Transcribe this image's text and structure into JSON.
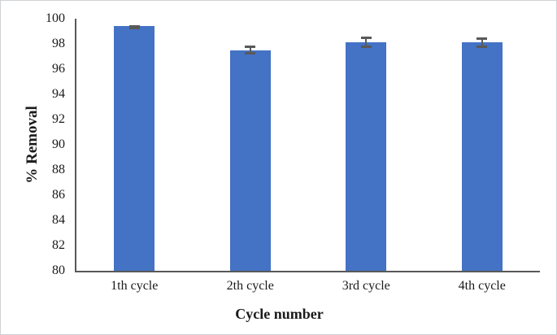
{
  "figure": {
    "background": "#ffffff",
    "border_color": "#cfd2d6"
  },
  "chart_data": {
    "type": "bar",
    "title": "",
    "categories": [
      "1th cycle",
      "2th cycle",
      "3rd cycle",
      "4th cycle"
    ],
    "values": [
      99.4,
      97.5,
      98.1,
      98.1
    ],
    "errors": [
      0.1,
      0.35,
      0.45,
      0.4
    ],
    "xlabel": "Cycle number",
    "ylabel": "% Removal",
    "ylim": [
      80,
      100
    ],
    "yticks": [
      100,
      98,
      96,
      94,
      92,
      90,
      88,
      86,
      84,
      82,
      80
    ],
    "ytick_step": 2,
    "grid": false,
    "legend": null,
    "bar_color": "#4472c4",
    "error_bar_color": "#595959",
    "axis_color": "#595959",
    "text_color": "#1a1a1a"
  }
}
